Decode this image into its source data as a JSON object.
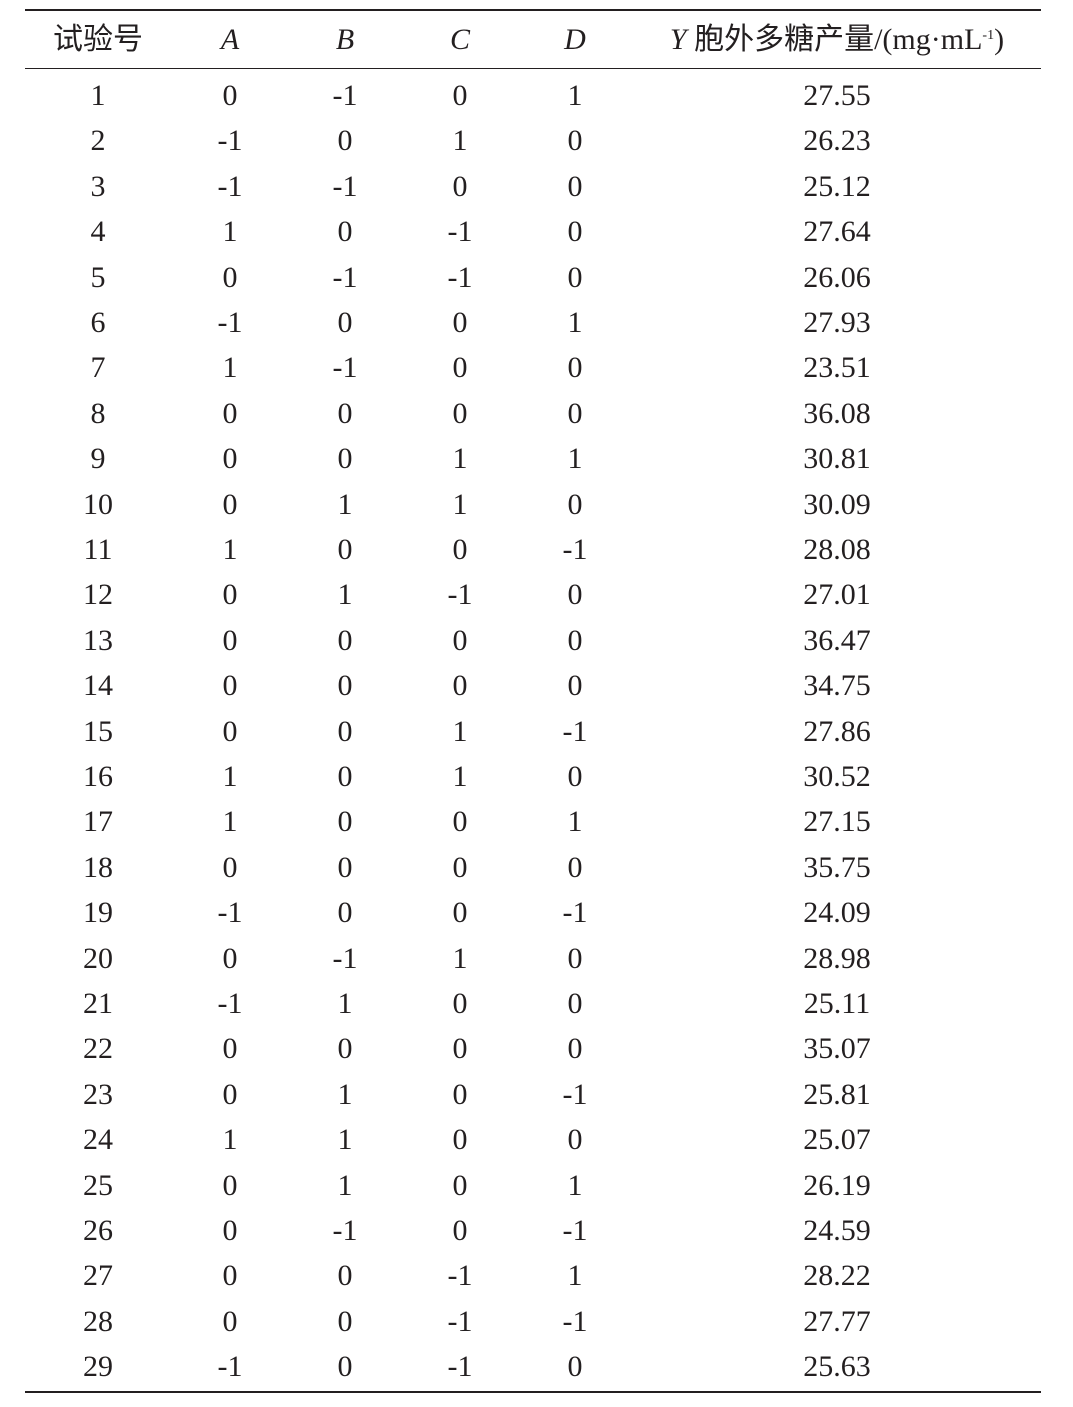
{
  "table": {
    "headers": {
      "run": "试验号",
      "a": "A",
      "b": "B",
      "c": "C",
      "d": "D",
      "y_symbol": "Y",
      "y_label": "胞外多糖产量/(mg·mL",
      "y_sup": "-1",
      "y_close": ")"
    },
    "rows": [
      [
        "1",
        "0",
        "-1",
        "0",
        "1",
        "27.55"
      ],
      [
        "2",
        "-1",
        "0",
        "1",
        "0",
        "26.23"
      ],
      [
        "3",
        "-1",
        "-1",
        "0",
        "0",
        "25.12"
      ],
      [
        "4",
        "1",
        "0",
        "-1",
        "0",
        "27.64"
      ],
      [
        "5",
        "0",
        "-1",
        "-1",
        "0",
        "26.06"
      ],
      [
        "6",
        "-1",
        "0",
        "0",
        "1",
        "27.93"
      ],
      [
        "7",
        "1",
        "-1",
        "0",
        "0",
        "23.51"
      ],
      [
        "8",
        "0",
        "0",
        "0",
        "0",
        "36.08"
      ],
      [
        "9",
        "0",
        "0",
        "1",
        "1",
        "30.81"
      ],
      [
        "10",
        "0",
        "1",
        "1",
        "0",
        "30.09"
      ],
      [
        "11",
        "1",
        "0",
        "0",
        "-1",
        "28.08"
      ],
      [
        "12",
        "0",
        "1",
        "-1",
        "0",
        "27.01"
      ],
      [
        "13",
        "0",
        "0",
        "0",
        "0",
        "36.47"
      ],
      [
        "14",
        "0",
        "0",
        "0",
        "0",
        "34.75"
      ],
      [
        "15",
        "0",
        "0",
        "1",
        "-1",
        "27.86"
      ],
      [
        "16",
        "1",
        "0",
        "1",
        "0",
        "30.52"
      ],
      [
        "17",
        "1",
        "0",
        "0",
        "1",
        "27.15"
      ],
      [
        "18",
        "0",
        "0",
        "0",
        "0",
        "35.75"
      ],
      [
        "19",
        "-1",
        "0",
        "0",
        "-1",
        "24.09"
      ],
      [
        "20",
        "0",
        "-1",
        "1",
        "0",
        "28.98"
      ],
      [
        "21",
        "-1",
        "1",
        "0",
        "0",
        "25.11"
      ],
      [
        "22",
        "0",
        "0",
        "0",
        "0",
        "35.07"
      ],
      [
        "23",
        "0",
        "1",
        "0",
        "-1",
        "25.81"
      ],
      [
        "24",
        "1",
        "1",
        "0",
        "0",
        "25.07"
      ],
      [
        "25",
        "0",
        "1",
        "0",
        "1",
        "26.19"
      ],
      [
        "26",
        "0",
        "-1",
        "0",
        "-1",
        "24.59"
      ],
      [
        "27",
        "0",
        "0",
        "-1",
        "1",
        "28.22"
      ],
      [
        "28",
        "0",
        "0",
        "-1",
        "-1",
        "27.77"
      ],
      [
        "29",
        "-1",
        "0",
        "-1",
        "0",
        "25.63"
      ]
    ]
  }
}
